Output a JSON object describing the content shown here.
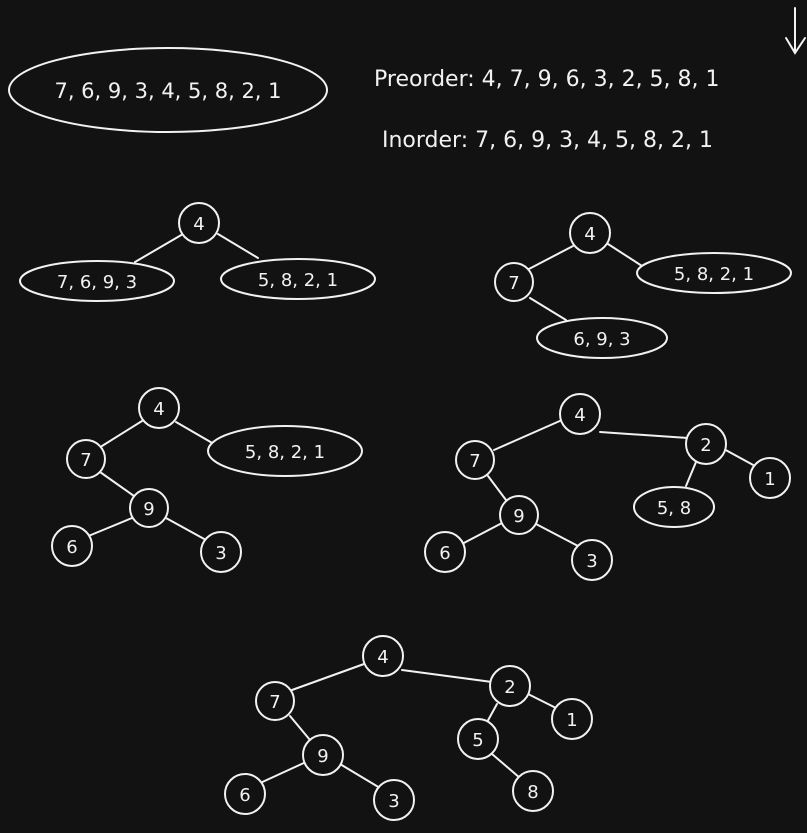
{
  "header": {
    "sequence": "7, 6, 9, 3, 4, 5, 8, 2, 1",
    "preorder": "Preorder: 4, 7, 9, 6, 3, 2, 5, 8, 1",
    "inorder": "Inorder: 7, 6, 9, 3, 4, 5, 8, 2, 1"
  },
  "steps": [
    {
      "id": "step1",
      "nodes": [
        {
          "id": "4",
          "label": "4"
        },
        {
          "id": "L",
          "label": "7, 6, 9, 3"
        },
        {
          "id": "R",
          "label": "5, 8, 2, 1"
        }
      ]
    },
    {
      "id": "step2",
      "nodes": [
        {
          "id": "4",
          "label": "4"
        },
        {
          "id": "7",
          "label": "7"
        },
        {
          "id": "R",
          "label": "5, 8, 2, 1"
        },
        {
          "id": "LR",
          "label": "6, 9, 3"
        }
      ]
    },
    {
      "id": "step3",
      "nodes": [
        {
          "id": "4",
          "label": "4"
        },
        {
          "id": "7",
          "label": "7"
        },
        {
          "id": "9",
          "label": "9"
        },
        {
          "id": "6",
          "label": "6"
        },
        {
          "id": "3",
          "label": "3"
        },
        {
          "id": "R",
          "label": "5, 8, 2, 1"
        }
      ]
    },
    {
      "id": "step4",
      "nodes": [
        {
          "id": "4",
          "label": "4"
        },
        {
          "id": "7",
          "label": "7"
        },
        {
          "id": "9",
          "label": "9"
        },
        {
          "id": "6",
          "label": "6"
        },
        {
          "id": "3",
          "label": "3"
        },
        {
          "id": "2",
          "label": "2"
        },
        {
          "id": "1",
          "label": "1"
        },
        {
          "id": "58",
          "label": "5, 8"
        }
      ]
    },
    {
      "id": "step5",
      "nodes": [
        {
          "id": "4",
          "label": "4"
        },
        {
          "id": "7",
          "label": "7"
        },
        {
          "id": "9",
          "label": "9"
        },
        {
          "id": "6",
          "label": "6"
        },
        {
          "id": "3",
          "label": "3"
        },
        {
          "id": "2",
          "label": "2"
        },
        {
          "id": "1",
          "label": "1"
        },
        {
          "id": "5",
          "label": "5"
        },
        {
          "id": "8",
          "label": "8"
        }
      ]
    }
  ]
}
